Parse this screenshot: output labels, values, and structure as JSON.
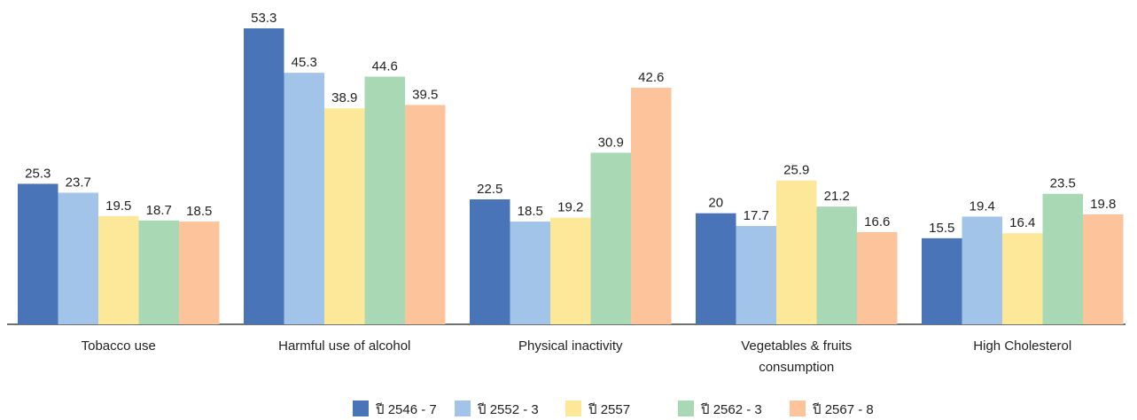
{
  "chart_data": {
    "type": "bar",
    "categories": [
      "Tobacco use",
      "Harmful use of alcohol",
      "Physical inactivity",
      "Vegetables & fruits consumption",
      "High Cholesterol"
    ],
    "series": [
      {
        "name": "ปี 2546 - 7",
        "color": "#4a74b8",
        "values": [
          25.3,
          53.3,
          22.5,
          20,
          15.5
        ]
      },
      {
        "name": "ปี 2552 - 3",
        "color": "#a2c4e8",
        "values": [
          23.7,
          45.3,
          18.5,
          17.7,
          19.4
        ]
      },
      {
        "name": "ปี 2557",
        "color": "#fde89a",
        "values": [
          19.5,
          38.9,
          19.2,
          25.9,
          16.4
        ]
      },
      {
        "name": "ปี 2562 - 3",
        "color": "#a9d8b4",
        "values": [
          18.7,
          44.6,
          30.9,
          21.2,
          23.5
        ]
      },
      {
        "name": "ปี 2567 - 8",
        "color": "#fdc39a",
        "values": [
          18.5,
          39.5,
          42.6,
          16.6,
          19.8
        ]
      }
    ],
    "legend": "bottom"
  }
}
